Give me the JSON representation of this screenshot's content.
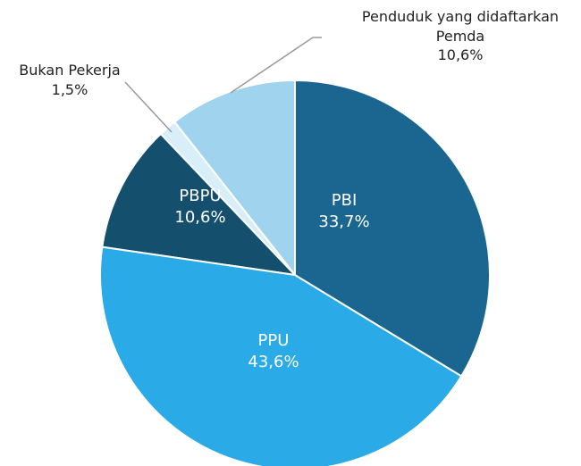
{
  "chart_data": {
    "type": "pie",
    "categories": [
      "PBI",
      "PPU",
      "PBPU",
      "Bukan Pekerja",
      "Penduduk yang didaftarkan Pemda"
    ],
    "values": [
      33.7,
      43.6,
      10.6,
      1.5,
      10.6
    ],
    "value_labels": [
      "33,7%",
      "43,6%",
      "10,6%",
      "1,5%",
      "10,6%"
    ],
    "colors": [
      "#1a6690",
      "#2aabe8",
      "#144f6e",
      "#d8eef8",
      "#9fd3ee"
    ]
  }
}
